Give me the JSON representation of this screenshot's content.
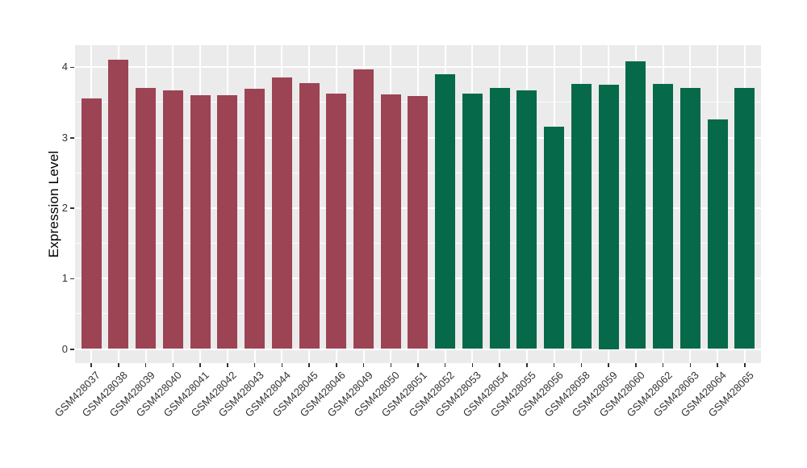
{
  "chart_data": {
    "type": "bar",
    "title": "",
    "xlabel": "",
    "ylabel": "Expression Level",
    "ylim": [
      0,
      4.3
    ],
    "yticks": [
      0,
      1,
      2,
      3,
      4
    ],
    "grid": true,
    "legend": false,
    "categories": [
      "GSM428037",
      "GSM428038",
      "GSM428039",
      "GSM428040",
      "GSM428041",
      "GSM428042",
      "GSM428043",
      "GSM428044",
      "GSM428045",
      "GSM428046",
      "GSM428049",
      "GSM428050",
      "GSM428051",
      "GSM428052",
      "GSM428053",
      "GSM428054",
      "GSM428055",
      "GSM428056",
      "GSM428058",
      "GSM428059",
      "GSM428060",
      "GSM428062",
      "GSM428063",
      "GSM428064",
      "GSM428065"
    ],
    "values": [
      3.56,
      4.11,
      3.7,
      3.67,
      3.6,
      3.6,
      3.69,
      3.86,
      3.77,
      3.63,
      3.97,
      3.61,
      3.59,
      3.9,
      3.62,
      3.71,
      3.67,
      3.16,
      3.76,
      3.75,
      4.08,
      3.76,
      3.7,
      3.26,
      3.71
    ],
    "groups": [
      "group1",
      "group1",
      "group1",
      "group1",
      "group1",
      "group1",
      "group1",
      "group1",
      "group1",
      "group1",
      "group1",
      "group1",
      "group1",
      "group2",
      "group2",
      "group2",
      "group2",
      "group2",
      "group2",
      "group2",
      "group2",
      "group2",
      "group2",
      "group2",
      "group2"
    ],
    "group_colors": {
      "group1": "#9C4454",
      "group2": "#05694A"
    },
    "panel_background": "#EBEBEB",
    "gridline_color": "#FFFFFF",
    "axis_text_color": "#333333",
    "tick_color": "#333333"
  }
}
